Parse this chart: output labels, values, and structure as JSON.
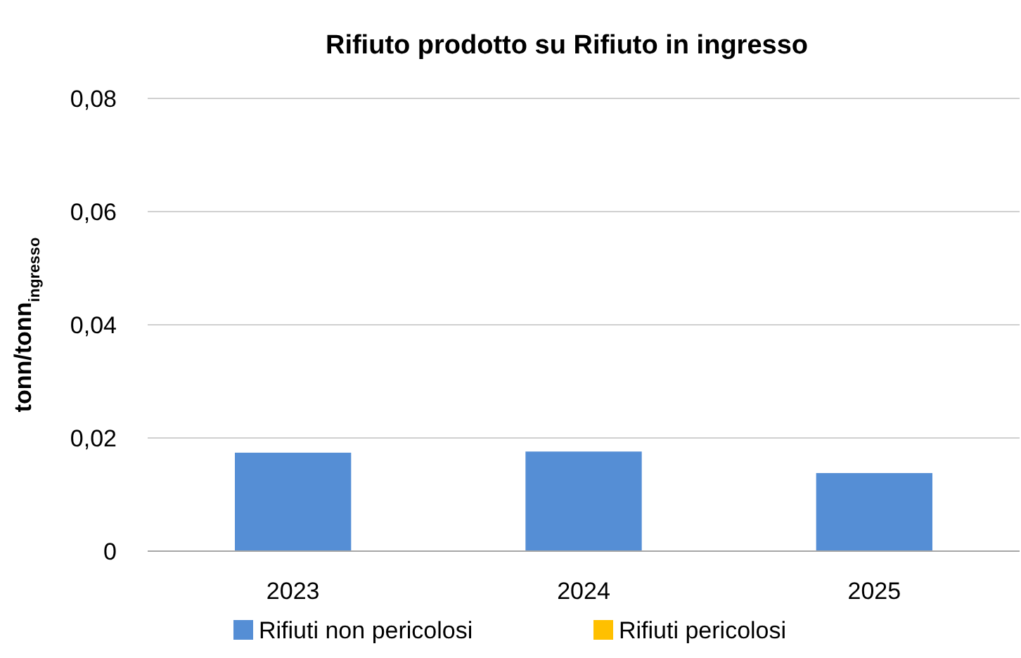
{
  "chart_data": {
    "type": "bar",
    "title": "Rifiuto prodotto su Rifiuto in ingresso",
    "ylabel": "tonn/tonn$_{ingresso}$",
    "categories": [
      "2023",
      "2024",
      "2025"
    ],
    "stacked": true,
    "series": [
      {
        "name": "Rifiuti non pericolosi",
        "color": "#558ed5",
        "values": [
          0.0174,
          0.0176,
          0.0138
        ]
      },
      {
        "name": "Rifiuti pericolosi",
        "color": "#ffc000",
        "values": [
          0,
          0,
          0
        ]
      }
    ],
    "ylim": [
      0,
      0.08
    ],
    "yticks": [
      0,
      {
        "value": 0.02,
        "label": "0,02"
      },
      {
        "value": 0.04,
        "label": "0,04"
      },
      {
        "value": 0.06,
        "label": "0,06"
      },
      {
        "value": 0.08,
        "label": "0,08"
      }
    ],
    "grid": "y",
    "legend": "bottom"
  }
}
